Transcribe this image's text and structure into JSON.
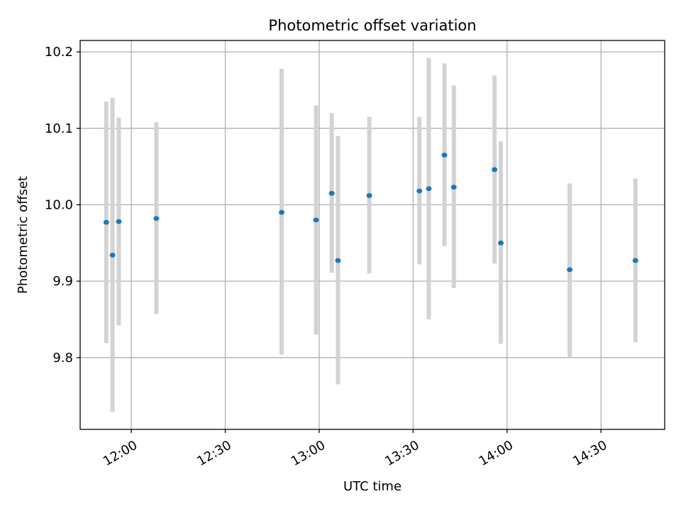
{
  "chart_data": {
    "type": "scatter",
    "title": "Photometric offset variation",
    "xlabel": "UTC time",
    "ylabel": "Photometric offset",
    "xlim": [
      "11:43:40",
      "14:50:20"
    ],
    "ylim": [
      9.706,
      10.215
    ],
    "x_ticks": [
      {
        "value": "12:00",
        "label": "12:00"
      },
      {
        "value": "12:30",
        "label": "12:30"
      },
      {
        "value": "13:00",
        "label": "13:00"
      },
      {
        "value": "13:30",
        "label": "13:30"
      },
      {
        "value": "14:00",
        "label": "14:00"
      },
      {
        "value": "14:30",
        "label": "14:30"
      }
    ],
    "y_ticks": [
      {
        "value": 9.8,
        "label": "9.8"
      },
      {
        "value": 9.9,
        "label": "9.9"
      },
      {
        "value": 10.0,
        "label": "10.0"
      },
      {
        "value": 10.1,
        "label": "10.1"
      },
      {
        "value": 10.2,
        "label": "10.2"
      }
    ],
    "grid": true,
    "colors": {
      "points": "#1f77b4",
      "errorbars": "#d3d3d3",
      "grid": "#b0b0b0"
    },
    "points": [
      {
        "x": "11:52",
        "y": 9.977,
        "ylow": 9.819,
        "yhigh": 10.135
      },
      {
        "x": "11:54",
        "y": 9.934,
        "ylow": 9.729,
        "yhigh": 10.14
      },
      {
        "x": "11:56",
        "y": 9.978,
        "ylow": 9.842,
        "yhigh": 10.114
      },
      {
        "x": "12:08",
        "y": 9.982,
        "ylow": 9.857,
        "yhigh": 10.108
      },
      {
        "x": "12:48",
        "y": 9.99,
        "ylow": 9.804,
        "yhigh": 10.178
      },
      {
        "x": "12:59",
        "y": 9.98,
        "ylow": 9.83,
        "yhigh": 10.13
      },
      {
        "x": "13:04",
        "y": 10.015,
        "ylow": 9.911,
        "yhigh": 10.12
      },
      {
        "x": "13:06",
        "y": 9.927,
        "ylow": 9.765,
        "yhigh": 10.09
      },
      {
        "x": "13:16",
        "y": 10.012,
        "ylow": 9.91,
        "yhigh": 10.115
      },
      {
        "x": "13:32",
        "y": 10.018,
        "ylow": 9.922,
        "yhigh": 10.115
      },
      {
        "x": "13:35",
        "y": 10.021,
        "ylow": 9.85,
        "yhigh": 10.192
      },
      {
        "x": "13:40",
        "y": 10.065,
        "ylow": 9.946,
        "yhigh": 10.185
      },
      {
        "x": "13:43",
        "y": 10.023,
        "ylow": 9.891,
        "yhigh": 10.156
      },
      {
        "x": "13:56",
        "y": 10.046,
        "ylow": 9.923,
        "yhigh": 10.169
      },
      {
        "x": "13:58",
        "y": 9.95,
        "ylow": 9.818,
        "yhigh": 10.083
      },
      {
        "x": "14:20",
        "y": 9.915,
        "ylow": 9.8,
        "yhigh": 10.028
      },
      {
        "x": "14:41",
        "y": 9.927,
        "ylow": 9.82,
        "yhigh": 10.034
      }
    ]
  }
}
